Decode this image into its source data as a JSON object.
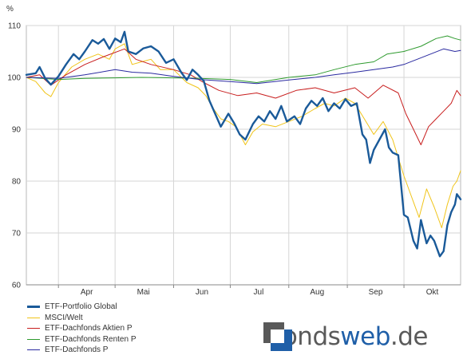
{
  "chart_data": {
    "type": "line",
    "title": "",
    "xlabel": "",
    "ylabel": "%",
    "ylim": [
      60,
      110
    ],
    "yticks": [
      60,
      70,
      80,
      90,
      100,
      110
    ],
    "x_range": [
      "2007-03-15",
      "2007-10-31"
    ],
    "month_labels": [
      {
        "label": "Apr",
        "date": "2007-04-16"
      },
      {
        "label": "Mai",
        "date": "2007-05-16"
      },
      {
        "label": "Jun",
        "date": "2007-06-16"
      },
      {
        "label": "Jul",
        "date": "2007-07-16"
      },
      {
        "label": "Aug",
        "date": "2007-08-16"
      },
      {
        "label": "Sep",
        "date": "2007-09-16"
      },
      {
        "label": "Okt",
        "date": "2007-10-16"
      }
    ],
    "month_separators": [
      "2007-04-01",
      "2007-05-01",
      "2007-06-01",
      "2007-07-01",
      "2007-08-01",
      "2007-09-01",
      "2007-10-01"
    ],
    "grid": true,
    "legend_position": "bottom-left",
    "series": [
      {
        "name": "ETF-Portfolio Global",
        "color": "#1a5a99",
        "width": 2.4,
        "points": [
          [
            "2007-03-15",
            100.5
          ],
          [
            "2007-03-20",
            100.8
          ],
          [
            "2007-03-22",
            102.0
          ],
          [
            "2007-03-25",
            99.8
          ],
          [
            "2007-03-28",
            98.6
          ],
          [
            "2007-04-01",
            100.2
          ],
          [
            "2007-04-05",
            102.5
          ],
          [
            "2007-04-09",
            104.5
          ],
          [
            "2007-04-12",
            103.5
          ],
          [
            "2007-04-15",
            105.0
          ],
          [
            "2007-04-19",
            107.2
          ],
          [
            "2007-04-22",
            106.5
          ],
          [
            "2007-04-25",
            107.4
          ],
          [
            "2007-04-28",
            105.5
          ],
          [
            "2007-05-01",
            107.5
          ],
          [
            "2007-05-04",
            106.8
          ],
          [
            "2007-05-06",
            108.8
          ],
          [
            "2007-05-08",
            105.0
          ],
          [
            "2007-05-12",
            104.5
          ],
          [
            "2007-05-16",
            105.6
          ],
          [
            "2007-05-20",
            106.0
          ],
          [
            "2007-05-24",
            105.0
          ],
          [
            "2007-05-28",
            102.8
          ],
          [
            "2007-06-01",
            103.5
          ],
          [
            "2007-06-05",
            101.0
          ],
          [
            "2007-06-08",
            99.5
          ],
          [
            "2007-06-11",
            101.5
          ],
          [
            "2007-06-14",
            100.5
          ],
          [
            "2007-06-17",
            99.3
          ],
          [
            "2007-06-20",
            95.5
          ],
          [
            "2007-06-23",
            93.0
          ],
          [
            "2007-06-26",
            90.5
          ],
          [
            "2007-06-30",
            93.0
          ],
          [
            "2007-07-03",
            91.2
          ],
          [
            "2007-07-06",
            89.0
          ],
          [
            "2007-07-09",
            88.0
          ],
          [
            "2007-07-13",
            91.0
          ],
          [
            "2007-07-16",
            92.5
          ],
          [
            "2007-07-19",
            91.5
          ],
          [
            "2007-07-22",
            93.5
          ],
          [
            "2007-07-25",
            92.0
          ],
          [
            "2007-07-28",
            94.5
          ],
          [
            "2007-07-31",
            91.5
          ],
          [
            "2007-08-04",
            92.5
          ],
          [
            "2007-08-07",
            91.0
          ],
          [
            "2007-08-10",
            94.0
          ],
          [
            "2007-08-13",
            95.5
          ],
          [
            "2007-08-16",
            94.5
          ],
          [
            "2007-08-19",
            96.0
          ],
          [
            "2007-08-22",
            93.5
          ],
          [
            "2007-08-25",
            95.0
          ],
          [
            "2007-08-28",
            94.0
          ],
          [
            "2007-08-31",
            95.8
          ],
          [
            "2007-09-03",
            94.5
          ],
          [
            "2007-09-06",
            95.0
          ],
          [
            "2007-09-09",
            89.0
          ],
          [
            "2007-09-11",
            88.0
          ],
          [
            "2007-09-13",
            83.5
          ],
          [
            "2007-09-15",
            86.0
          ],
          [
            "2007-09-18",
            88.0
          ],
          [
            "2007-09-21",
            90.0
          ],
          [
            "2007-09-23",
            86.5
          ],
          [
            "2007-09-25",
            85.5
          ],
          [
            "2007-09-28",
            85.0
          ],
          [
            "2007-10-01",
            73.5
          ],
          [
            "2007-10-03",
            73.0
          ],
          [
            "2007-10-06",
            68.5
          ],
          [
            "2007-10-08",
            67.0
          ],
          [
            "2007-10-10",
            72.5
          ],
          [
            "2007-10-13",
            68.0
          ],
          [
            "2007-10-15",
            69.5
          ],
          [
            "2007-10-17",
            68.5
          ],
          [
            "2007-10-20",
            65.5
          ],
          [
            "2007-10-22",
            66.5
          ],
          [
            "2007-10-24",
            71.5
          ],
          [
            "2007-10-26",
            74.0
          ],
          [
            "2007-10-28",
            75.5
          ],
          [
            "2007-10-29",
            77.5
          ],
          [
            "2007-10-31",
            76.5
          ]
        ]
      },
      {
        "name": "MSCI/Welt",
        "color": "#f0c419",
        "width": 1,
        "points": [
          [
            "2007-03-15",
            100.0
          ],
          [
            "2007-03-20",
            99.2
          ],
          [
            "2007-03-25",
            97.0
          ],
          [
            "2007-03-28",
            96.3
          ],
          [
            "2007-04-01",
            99.0
          ],
          [
            "2007-04-08",
            102.0
          ],
          [
            "2007-04-15",
            103.5
          ],
          [
            "2007-04-22",
            104.5
          ],
          [
            "2007-04-28",
            103.5
          ],
          [
            "2007-05-01",
            105.5
          ],
          [
            "2007-05-06",
            106.5
          ],
          [
            "2007-05-10",
            102.5
          ],
          [
            "2007-05-15",
            103.0
          ],
          [
            "2007-05-20",
            103.5
          ],
          [
            "2007-05-25",
            101.5
          ],
          [
            "2007-06-01",
            101.5
          ],
          [
            "2007-06-08",
            99.0
          ],
          [
            "2007-06-14",
            98.0
          ],
          [
            "2007-06-18",
            96.5
          ],
          [
            "2007-06-22",
            94.0
          ],
          [
            "2007-06-26",
            92.0
          ],
          [
            "2007-06-30",
            91.5
          ],
          [
            "2007-07-04",
            90.5
          ],
          [
            "2007-07-09",
            87.0
          ],
          [
            "2007-07-13",
            89.5
          ],
          [
            "2007-07-18",
            91.0
          ],
          [
            "2007-07-25",
            90.5
          ],
          [
            "2007-08-01",
            91.5
          ],
          [
            "2007-08-08",
            92.5
          ],
          [
            "2007-08-15",
            94.0
          ],
          [
            "2007-08-20",
            95.0
          ],
          [
            "2007-08-25",
            94.5
          ],
          [
            "2007-08-31",
            96.0
          ],
          [
            "2007-09-05",
            95.0
          ],
          [
            "2007-09-10",
            92.0
          ],
          [
            "2007-09-15",
            89.0
          ],
          [
            "2007-09-20",
            91.5
          ],
          [
            "2007-09-25",
            88.0
          ],
          [
            "2007-10-01",
            81.0
          ],
          [
            "2007-10-05",
            77.0
          ],
          [
            "2007-10-09",
            73.0
          ],
          [
            "2007-10-13",
            78.5
          ],
          [
            "2007-10-17",
            75.0
          ],
          [
            "2007-10-21",
            71.0
          ],
          [
            "2007-10-24",
            75.5
          ],
          [
            "2007-10-27",
            79.0
          ],
          [
            "2007-10-29",
            80.0
          ],
          [
            "2007-10-31",
            82.0
          ]
        ]
      },
      {
        "name": "ETF-Dachfonds Aktien P",
        "color": "#c81e1e",
        "width": 1,
        "points": [
          [
            "2007-03-15",
            100.0
          ],
          [
            "2007-03-22",
            100.5
          ],
          [
            "2007-03-28",
            98.5
          ],
          [
            "2007-04-05",
            100.5
          ],
          [
            "2007-04-15",
            102.5
          ],
          [
            "2007-04-25",
            104.0
          ],
          [
            "2007-05-06",
            105.5
          ],
          [
            "2007-05-12",
            103.5
          ],
          [
            "2007-05-20",
            102.5
          ],
          [
            "2007-06-01",
            101.5
          ],
          [
            "2007-06-10",
            100.5
          ],
          [
            "2007-06-17",
            99.0
          ],
          [
            "2007-06-25",
            97.5
          ],
          [
            "2007-07-05",
            96.5
          ],
          [
            "2007-07-15",
            97.0
          ],
          [
            "2007-07-25",
            96.0
          ],
          [
            "2007-08-05",
            97.5
          ],
          [
            "2007-08-15",
            98.0
          ],
          [
            "2007-08-25",
            97.0
          ],
          [
            "2007-09-05",
            98.0
          ],
          [
            "2007-09-12",
            96.0
          ],
          [
            "2007-09-20",
            98.5
          ],
          [
            "2007-09-28",
            97.0
          ],
          [
            "2007-10-02",
            93.0
          ],
          [
            "2007-10-06",
            90.0
          ],
          [
            "2007-10-10",
            87.0
          ],
          [
            "2007-10-14",
            90.5
          ],
          [
            "2007-10-18",
            92.0
          ],
          [
            "2007-10-22",
            93.5
          ],
          [
            "2007-10-26",
            95.0
          ],
          [
            "2007-10-29",
            97.5
          ],
          [
            "2007-10-31",
            96.5
          ]
        ]
      },
      {
        "name": "ETF-Dachfonds Renten P",
        "color": "#2e9a2e",
        "width": 1,
        "points": [
          [
            "2007-03-15",
            100.0
          ],
          [
            "2007-04-01",
            99.6
          ],
          [
            "2007-04-15",
            99.8
          ],
          [
            "2007-05-01",
            99.9
          ],
          [
            "2007-05-15",
            100.0
          ],
          [
            "2007-06-01",
            99.9
          ],
          [
            "2007-06-15",
            99.8
          ],
          [
            "2007-07-01",
            99.6
          ],
          [
            "2007-07-15",
            99.0
          ],
          [
            "2007-08-01",
            100.0
          ],
          [
            "2007-08-15",
            100.5
          ],
          [
            "2007-08-25",
            101.5
          ],
          [
            "2007-09-05",
            102.5
          ],
          [
            "2007-09-15",
            103.0
          ],
          [
            "2007-09-22",
            104.5
          ],
          [
            "2007-10-01",
            105.0
          ],
          [
            "2007-10-10",
            106.0
          ],
          [
            "2007-10-18",
            107.5
          ],
          [
            "2007-10-24",
            108.0
          ],
          [
            "2007-10-28",
            107.5
          ],
          [
            "2007-10-31",
            107.2
          ]
        ]
      },
      {
        "name": "ETF-Dachfonds P",
        "color": "#2a2aa0",
        "width": 1,
        "points": [
          [
            "2007-03-15",
            100.0
          ],
          [
            "2007-04-01",
            99.8
          ],
          [
            "2007-04-15",
            100.5
          ],
          [
            "2007-05-01",
            101.5
          ],
          [
            "2007-05-10",
            101.0
          ],
          [
            "2007-05-20",
            100.8
          ],
          [
            "2007-06-01",
            100.2
          ],
          [
            "2007-06-15",
            99.6
          ],
          [
            "2007-07-01",
            99.2
          ],
          [
            "2007-07-15",
            98.8
          ],
          [
            "2007-08-01",
            99.5
          ],
          [
            "2007-08-15",
            100.0
          ],
          [
            "2007-08-25",
            100.5
          ],
          [
            "2007-09-05",
            101.0
          ],
          [
            "2007-09-15",
            101.5
          ],
          [
            "2007-09-25",
            102.0
          ],
          [
            "2007-10-01",
            102.5
          ],
          [
            "2007-10-08",
            103.5
          ],
          [
            "2007-10-15",
            104.5
          ],
          [
            "2007-10-22",
            105.5
          ],
          [
            "2007-10-28",
            105.0
          ],
          [
            "2007-10-31",
            105.2
          ]
        ]
      }
    ]
  },
  "logo": {
    "text_dark_1": "fonds",
    "text_blue": "web",
    "text_dark_2": ".de"
  }
}
